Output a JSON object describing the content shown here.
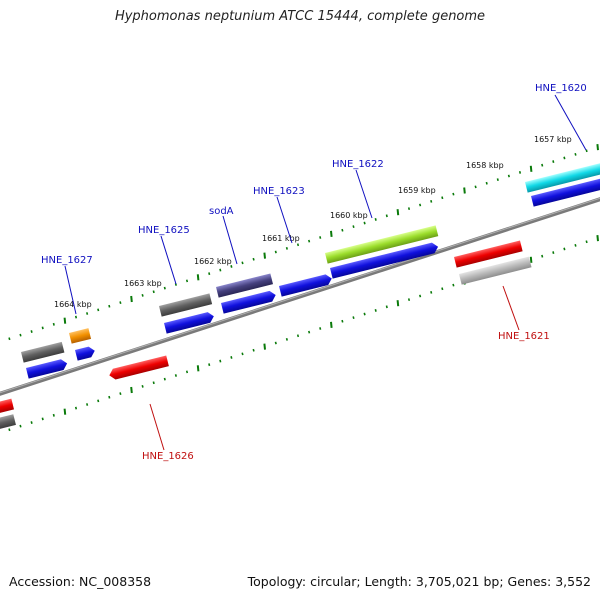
{
  "title": "Hyphomonas neptunium ATCC 15444, complete genome",
  "footer": {
    "accession": "Accession: NC_008358",
    "topology": "Topology: circular; Length: 3,705,021 bp; Genes: 3,552"
  },
  "kbp_labels": [
    "1657 kbp",
    "1658 kbp",
    "1659 kbp",
    "1660 kbp",
    "1661 kbp",
    "1662 kbp",
    "1663 kbp",
    "1664 kbp"
  ],
  "gene_labels": [
    "HNE_1620",
    "HNE_1621",
    "HNE_1622",
    "HNE_1623",
    "sodA",
    "HNE_1625",
    "HNE_1626",
    "HNE_1627"
  ],
  "colors": {
    "forward_label": "#1010c0",
    "reverse_label": "#c01010",
    "backbone": "#808080",
    "cds": "#1010dd",
    "tick": "#0a7a0a"
  }
}
